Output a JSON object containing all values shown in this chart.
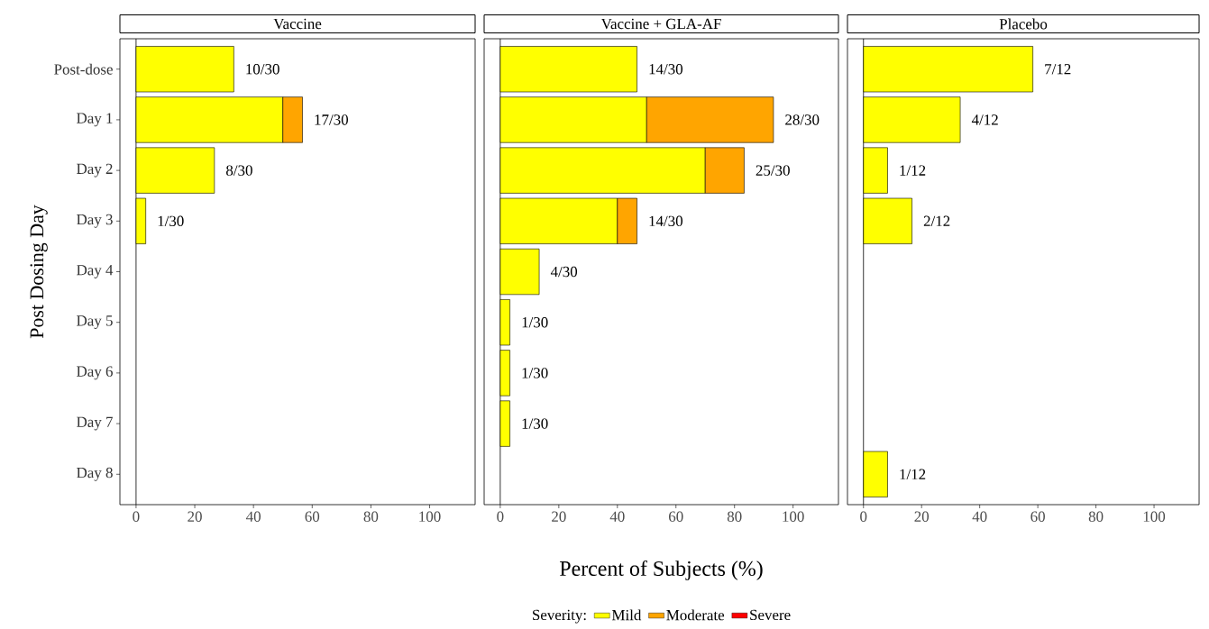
{
  "chart_data": [
    {
      "type": "bar",
      "orientation": "horizontal",
      "stacked": true,
      "title": "Vaccine",
      "ylabel": "Post Dosing Day",
      "categories": [
        "Post-dose",
        "Day 1",
        "Day 2",
        "Day 3",
        "Day 4",
        "Day 5",
        "Day 6",
        "Day 7",
        "Day 8"
      ],
      "series": [
        {
          "color": "#ffff00",
          "values": [
            33.3,
            50,
            26.7,
            3.3,
            null,
            null,
            null,
            null,
            null
          ]
        },
        {
          "color": "#ffa500",
          "values": [
            null,
            6.7,
            null,
            null,
            null,
            null,
            null,
            null,
            null
          ]
        },
        {
          "color": "#ff0000",
          "values": [
            null,
            null,
            null,
            null,
            null,
            null,
            null,
            null,
            null
          ]
        }
      ],
      "annotations": [
        {
          "text": "10/30",
          "x": 33.3,
          "y": "Post-dose"
        },
        {
          "text": "17/30",
          "x": 56.7,
          "y": "Day 1"
        },
        {
          "text": "8/30",
          "x": 26.7,
          "y": "Day 2"
        },
        {
          "text": "1/30",
          "x": 3.3,
          "y": "Day 3"
        }
      ],
      "xlim": [
        -5.5,
        115.5
      ],
      "xticks": [
        0,
        20,
        40,
        60,
        80,
        100
      ],
      "grid": false,
      "ref_lines": [
        {
          "axis": "x",
          "value": 0
        }
      ]
    },
    {
      "type": "bar",
      "orientation": "horizontal",
      "stacked": true,
      "title": "Vaccine + GLA-AF",
      "xlabel": "Percent of Subjects (%)",
      "legend_title": "Severity:",
      "legend": "bottom",
      "categories": [
        "Post-dose",
        "Day 1",
        "Day 2",
        "Day 3",
        "Day 4",
        "Day 5",
        "Day 6",
        "Day 7",
        "Day 8"
      ],
      "series": [
        {
          "name": "Mild",
          "color": "#ffff00",
          "values": [
            46.7,
            50,
            70,
            40,
            13.3,
            3.3,
            3.3,
            3.3,
            null
          ]
        },
        {
          "name": "Moderate",
          "color": "#ffa500",
          "values": [
            null,
            43.3,
            13.3,
            6.7,
            null,
            null,
            null,
            null,
            null
          ]
        },
        {
          "name": "Severe",
          "color": "#ff0000",
          "values": [
            null,
            null,
            null,
            null,
            null,
            null,
            null,
            null,
            null
          ]
        }
      ],
      "annotations": [
        {
          "text": "14/30",
          "x": 46.7,
          "y": "Post-dose"
        },
        {
          "text": "28/30",
          "x": 93.3,
          "y": "Day 1"
        },
        {
          "text": "25/30",
          "x": 83.3,
          "y": "Day 2"
        },
        {
          "text": "14/30",
          "x": 46.7,
          "y": "Day 3"
        },
        {
          "text": "4/30",
          "x": 13.3,
          "y": "Day 4"
        },
        {
          "text": "1/30",
          "x": 3.3,
          "y": "Day 5"
        },
        {
          "text": "1/30",
          "x": 3.3,
          "y": "Day 6"
        },
        {
          "text": "1/30",
          "x": 3.3,
          "y": "Day 7"
        }
      ],
      "xlim": [
        -5.5,
        115.5
      ],
      "xticks": [
        0,
        20,
        40,
        60,
        80,
        100
      ],
      "tick_labels": "x",
      "grid": false,
      "ref_lines": [
        {
          "axis": "x",
          "value": 0
        }
      ]
    },
    {
      "type": "bar",
      "orientation": "horizontal",
      "stacked": true,
      "title": "Placebo",
      "categories": [
        "Post-dose",
        "Day 1",
        "Day 2",
        "Day 3",
        "Day 4",
        "Day 5",
        "Day 6",
        "Day 7",
        "Day 8"
      ],
      "series": [
        {
          "color": "#ffff00",
          "values": [
            58.3,
            33.3,
            8.3,
            16.7,
            null,
            null,
            null,
            null,
            8.3
          ]
        },
        {
          "color": "#ffa500",
          "values": [
            null,
            null,
            null,
            null,
            null,
            null,
            null,
            null,
            null
          ]
        },
        {
          "color": "#ff0000",
          "values": [
            null,
            null,
            null,
            null,
            null,
            null,
            null,
            null,
            null
          ]
        }
      ],
      "annotations": [
        {
          "text": "7/12",
          "x": 58.3,
          "y": "Post-dose"
        },
        {
          "text": "4/12",
          "x": 33.3,
          "y": "Day 1"
        },
        {
          "text": "1/12",
          "x": 8.3,
          "y": "Day 2"
        },
        {
          "text": "2/12",
          "x": 16.7,
          "y": "Day 3"
        },
        {
          "text": "1/12",
          "x": 8.3,
          "y": "Day 8"
        }
      ],
      "xlim": [
        -5.5,
        115.5
      ],
      "xticks": [
        0,
        20,
        40,
        60,
        80,
        100
      ],
      "tick_labels": "x",
      "grid": false,
      "ref_lines": [
        {
          "axis": "x",
          "value": 0
        }
      ]
    }
  ]
}
